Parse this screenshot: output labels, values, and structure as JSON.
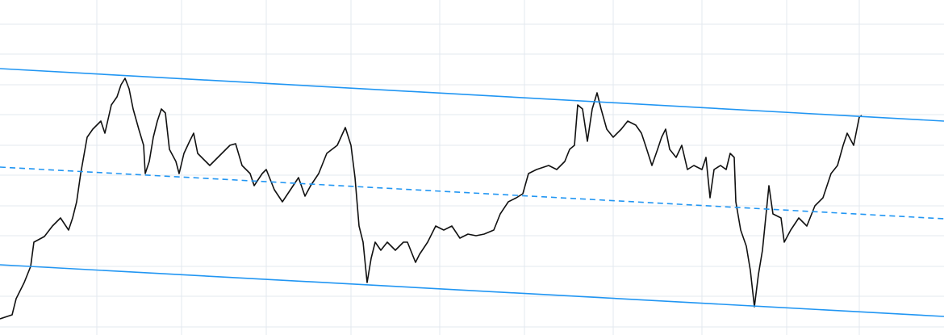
{
  "chart_data": {
    "type": "line",
    "xlim": [
      0,
      1170
    ],
    "ylim": [
      0,
      415
    ],
    "xticks": [
      120,
      225,
      330,
      435,
      545,
      650,
      760,
      870,
      975,
      1065
    ],
    "yticks": [
      10,
      48,
      85,
      123,
      160,
      198,
      235,
      273,
      310,
      348,
      385
    ],
    "grid": true,
    "series": [
      {
        "color": "#111111",
        "dash": false,
        "x": [
          0,
          15,
          20,
          30,
          38,
          42,
          55,
          65,
          75,
          85,
          90,
          95,
          100,
          108,
          115,
          125,
          130,
          138,
          145,
          150,
          155,
          160,
          165,
          172,
          178,
          180,
          185,
          190,
          195,
          200,
          205,
          210,
          218,
          222,
          228,
          235,
          240,
          245,
          255,
          260,
          270,
          275,
          285,
          292,
          300,
          310,
          315,
          325,
          330,
          340,
          350,
          360,
          370,
          378,
          385,
          395,
          405,
          418,
          428,
          435,
          440,
          445,
          450,
          455,
          460,
          465,
          472,
          480,
          490,
          500,
          505,
          515,
          520,
          530,
          540,
          550,
          560,
          570,
          580,
          590,
          600,
          612,
          620,
          630,
          640,
          648,
          655,
          665,
          680,
          690,
          700,
          706,
          712,
          716,
          722,
          728,
          734,
          740,
          745,
          752,
          760,
          770,
          778,
          788,
          795,
          800,
          808,
          815,
          820,
          825,
          830,
          838,
          845,
          852,
          860,
          870,
          875,
          880,
          885,
          893,
          900,
          905,
          910,
          912,
          918,
          925,
          930,
          935,
          940,
          945,
          950,
          953,
          958,
          968,
          972,
          980,
          990,
          1000,
          1010,
          1020,
          1030,
          1038,
          1045,
          1050,
          1058,
          1065,
          1068
        ],
        "values": [
          20,
          25,
          45,
          65,
          85,
          115,
          122,
          135,
          145,
          130,
          145,
          165,
          200,
          245,
          255,
          265,
          250,
          285,
          295,
          310,
          318,
          305,
          280,
          255,
          235,
          200,
          215,
          245,
          265,
          280,
          275,
          230,
          215,
          200,
          225,
          240,
          250,
          225,
          215,
          210,
          220,
          225,
          235,
          237,
          210,
          200,
          185,
          200,
          205,
          180,
          165,
          180,
          195,
          172,
          185,
          200,
          225,
          235,
          257,
          235,
          195,
          135,
          115,
          65,
          95,
          115,
          105,
          115,
          105,
          115,
          115,
          90,
          100,
          115,
          135,
          130,
          135,
          120,
          125,
          123,
          125,
          130,
          150,
          165,
          170,
          175,
          200,
          205,
          210,
          205,
          215,
          230,
          235,
          285,
          280,
          240,
          280,
          300,
          280,
          255,
          245,
          255,
          265,
          260,
          250,
          235,
          210,
          230,
          245,
          255,
          230,
          220,
          235,
          205,
          210,
          205,
          220,
          170,
          205,
          210,
          205,
          225,
          220,
          165,
          130,
          110,
          80,
          35,
          75,
          105,
          155,
          185,
          150,
          145,
          115,
          130,
          145,
          135,
          160,
          170,
          200,
          210,
          235,
          250,
          235,
          270,
          272
        ]
      },
      {
        "color": "#2196f3",
        "dash": false,
        "x": [
          0,
          1170
        ],
        "values": [
          330,
          265
        ]
      },
      {
        "color": "#2196f3",
        "dash": true,
        "x": [
          0,
          1170
        ],
        "values": [
          208,
          144
        ]
      },
      {
        "color": "#2196f3",
        "dash": false,
        "x": [
          0,
          1170
        ],
        "values": [
          87,
          23
        ]
      }
    ]
  }
}
